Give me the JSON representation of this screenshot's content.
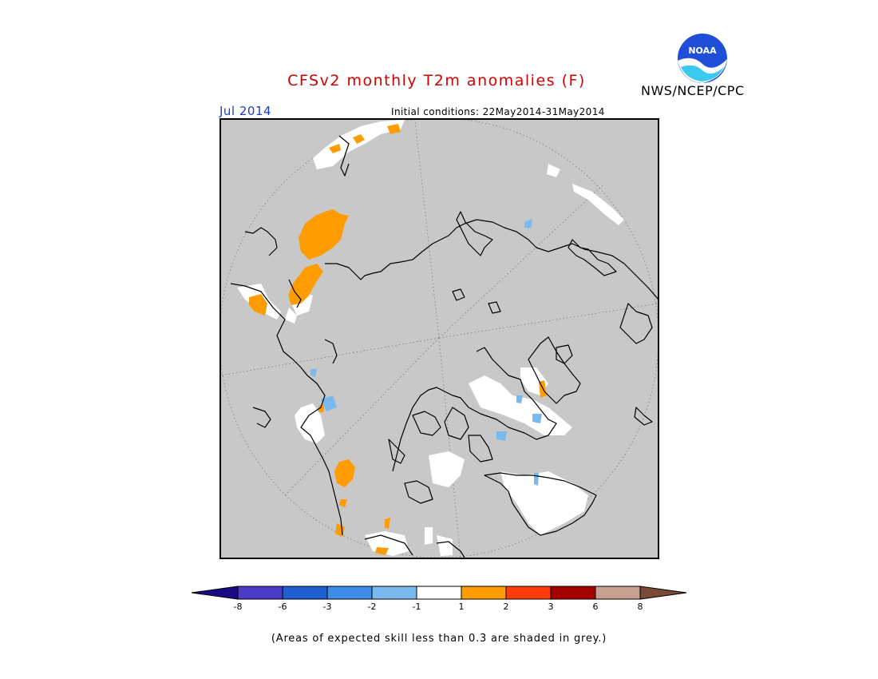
{
  "header": {
    "title": "CFSv2 monthly T2m anomalies (F)",
    "agency": "NWS/NCEP/CPC",
    "month": "Jul 2014",
    "initial_conditions": "Initial conditions: 22May2014-31May2014"
  },
  "logo": {
    "text": "NOAA",
    "icon": "noaa-logo"
  },
  "legend": {
    "ticks": [
      "-8",
      "-6",
      "-3",
      "-2",
      "-1",
      "1",
      "2",
      "3",
      "6",
      "8"
    ],
    "colors": {
      "below_min": "#1b0a86",
      "b1": "#4a3cc7",
      "b2": "#1f5fcf",
      "b3": "#3d8ce8",
      "b4": "#7ab8f0",
      "b5": "#ffffff",
      "b6": "#ff9c00",
      "b7": "#ff3c0a",
      "b8": "#a50000",
      "b9": "#c8a090",
      "above_max": "#7a4a38"
    },
    "note": "(Areas of expected skill less than 0.3 are shaded in grey.)"
  },
  "map_colors": {
    "background": "#c8c8c8",
    "coast": "#000000",
    "warm": "#ff9c00",
    "cool": "#7ab8f0",
    "neutral": "#ffffff"
  }
}
